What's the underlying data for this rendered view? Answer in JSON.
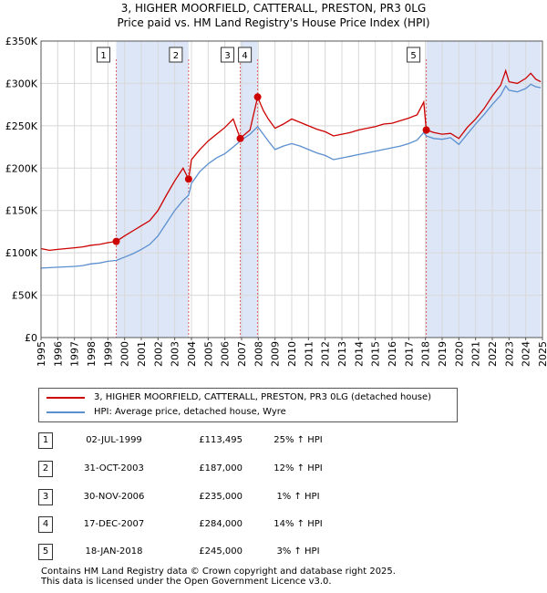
{
  "title_line1": "3, HIGHER MOORFIELD, CATTERALL, PRESTON, PR3 0LG",
  "title_line2": "Price paid vs. HM Land Registry's House Price Index (HPI)",
  "colors": {
    "price_line": "#cc0000",
    "hpi_line": "#5b8fd0",
    "shade": "#dde6f6",
    "marker": "#cc0000"
  },
  "chart_data": {
    "type": "line",
    "xlim": [
      1995,
      2025
    ],
    "ylim": [
      0,
      350000
    ],
    "y_ticks": [
      {
        "value": 0,
        "label": "£0"
      },
      {
        "value": 50000,
        "label": "£50K"
      },
      {
        "value": 100000,
        "label": "£100K"
      },
      {
        "value": 150000,
        "label": "£150K"
      },
      {
        "value": 200000,
        "label": "£200K"
      },
      {
        "value": 250000,
        "label": "£250K"
      },
      {
        "value": 300000,
        "label": "£300K"
      },
      {
        "value": 350000,
        "label": "£350K"
      }
    ],
    "x_ticks": [
      "1995",
      "1996",
      "1997",
      "1998",
      "1999",
      "2000",
      "2001",
      "2002",
      "2003",
      "2004",
      "2005",
      "2006",
      "2007",
      "2008",
      "2009",
      "2010",
      "2011",
      "2012",
      "2013",
      "2014",
      "2015",
      "2016",
      "2017",
      "2018",
      "2019",
      "2020",
      "2021",
      "2022",
      "2023",
      "2024",
      "2025"
    ],
    "shaded_ranges": [
      [
        1999.5,
        2003.83
      ],
      [
        2006.92,
        2007.96
      ],
      [
        2018.05,
        2024.9
      ]
    ],
    "series": [
      {
        "name": "3, HIGHER MOORFIELD, CATTERALL, PRESTON, PR3 0LG (detached house)",
        "points": [
          [
            1995.0,
            105000
          ],
          [
            1995.5,
            103000
          ],
          [
            1996.0,
            104000
          ],
          [
            1996.5,
            105000
          ],
          [
            1997.0,
            106000
          ],
          [
            1997.5,
            107000
          ],
          [
            1998.0,
            109000
          ],
          [
            1998.5,
            110000
          ],
          [
            1999.0,
            112000
          ],
          [
            1999.5,
            113495
          ],
          [
            2000.0,
            120000
          ],
          [
            2000.5,
            126000
          ],
          [
            2001.0,
            132000
          ],
          [
            2001.5,
            138000
          ],
          [
            2002.0,
            150000
          ],
          [
            2002.5,
            168000
          ],
          [
            2003.0,
            185000
          ],
          [
            2003.5,
            200000
          ],
          [
            2003.83,
            187000
          ],
          [
            2004.0,
            210000
          ],
          [
            2004.5,
            222000
          ],
          [
            2005.0,
            232000
          ],
          [
            2005.5,
            240000
          ],
          [
            2006.0,
            248000
          ],
          [
            2006.5,
            258000
          ],
          [
            2006.92,
            235000
          ],
          [
            2007.2,
            240000
          ],
          [
            2007.5,
            245000
          ],
          [
            2007.96,
            284000
          ],
          [
            2008.3,
            268000
          ],
          [
            2008.6,
            258000
          ],
          [
            2009.0,
            247000
          ],
          [
            2009.5,
            252000
          ],
          [
            2010.0,
            258000
          ],
          [
            2010.5,
            254000
          ],
          [
            2011.0,
            250000
          ],
          [
            2011.5,
            246000
          ],
          [
            2012.0,
            243000
          ],
          [
            2012.5,
            238000
          ],
          [
            2013.0,
            240000
          ],
          [
            2013.5,
            242000
          ],
          [
            2014.0,
            245000
          ],
          [
            2014.5,
            247000
          ],
          [
            2015.0,
            249000
          ],
          [
            2015.5,
            252000
          ],
          [
            2016.0,
            253000
          ],
          [
            2016.5,
            256000
          ],
          [
            2017.0,
            259000
          ],
          [
            2017.5,
            263000
          ],
          [
            2017.9,
            278000
          ],
          [
            2018.05,
            245000
          ],
          [
            2018.5,
            242000
          ],
          [
            2019.0,
            240000
          ],
          [
            2019.5,
            241000
          ],
          [
            2020.0,
            235000
          ],
          [
            2020.5,
            248000
          ],
          [
            2021.0,
            258000
          ],
          [
            2021.5,
            270000
          ],
          [
            2022.0,
            285000
          ],
          [
            2022.5,
            298000
          ],
          [
            2022.8,
            315000
          ],
          [
            2023.0,
            302000
          ],
          [
            2023.5,
            300000
          ],
          [
            2024.0,
            306000
          ],
          [
            2024.3,
            312000
          ],
          [
            2024.6,
            305000
          ],
          [
            2024.9,
            302000
          ]
        ]
      },
      {
        "name": "HPI: Average price, detached house, Wyre",
        "points": [
          [
            1995.0,
            82000
          ],
          [
            1995.5,
            82500
          ],
          [
            1996.0,
            83000
          ],
          [
            1996.5,
            83500
          ],
          [
            1997.0,
            84000
          ],
          [
            1997.5,
            85000
          ],
          [
            1998.0,
            87000
          ],
          [
            1998.5,
            88000
          ],
          [
            1999.0,
            90000
          ],
          [
            1999.5,
            91000
          ],
          [
            2000.0,
            95000
          ],
          [
            2000.5,
            99000
          ],
          [
            2001.0,
            104000
          ],
          [
            2001.5,
            110000
          ],
          [
            2002.0,
            120000
          ],
          [
            2002.5,
            135000
          ],
          [
            2003.0,
            150000
          ],
          [
            2003.5,
            162000
          ],
          [
            2003.83,
            168000
          ],
          [
            2004.0,
            182000
          ],
          [
            2004.5,
            196000
          ],
          [
            2005.0,
            205000
          ],
          [
            2005.5,
            212000
          ],
          [
            2006.0,
            217000
          ],
          [
            2006.5,
            225000
          ],
          [
            2006.92,
            232000
          ],
          [
            2007.2,
            236000
          ],
          [
            2007.5,
            240000
          ],
          [
            2007.96,
            249000
          ],
          [
            2008.3,
            240000
          ],
          [
            2008.6,
            232000
          ],
          [
            2009.0,
            222000
          ],
          [
            2009.5,
            226000
          ],
          [
            2010.0,
            229000
          ],
          [
            2010.5,
            226000
          ],
          [
            2011.0,
            222000
          ],
          [
            2011.5,
            218000
          ],
          [
            2012.0,
            215000
          ],
          [
            2012.5,
            210000
          ],
          [
            2013.0,
            212000
          ],
          [
            2013.5,
            214000
          ],
          [
            2014.0,
            216000
          ],
          [
            2014.5,
            218000
          ],
          [
            2015.0,
            220000
          ],
          [
            2015.5,
            222000
          ],
          [
            2016.0,
            224000
          ],
          [
            2016.5,
            226000
          ],
          [
            2017.0,
            229000
          ],
          [
            2017.5,
            233000
          ],
          [
            2017.9,
            242000
          ],
          [
            2018.05,
            238000
          ],
          [
            2018.5,
            235000
          ],
          [
            2019.0,
            234000
          ],
          [
            2019.5,
            236000
          ],
          [
            2020.0,
            228000
          ],
          [
            2020.5,
            240000
          ],
          [
            2021.0,
            252000
          ],
          [
            2021.5,
            263000
          ],
          [
            2022.0,
            275000
          ],
          [
            2022.5,
            286000
          ],
          [
            2022.8,
            297000
          ],
          [
            2023.0,
            292000
          ],
          [
            2023.5,
            290000
          ],
          [
            2024.0,
            294000
          ],
          [
            2024.3,
            299000
          ],
          [
            2024.6,
            296000
          ],
          [
            2024.9,
            295000
          ]
        ]
      }
    ],
    "sales": [
      {
        "label": "1",
        "x": 1999.5,
        "y": 113495
      },
      {
        "label": "2",
        "x": 2003.83,
        "y": 187000
      },
      {
        "label": "3",
        "x": 2006.92,
        "y": 235000
      },
      {
        "label": "4",
        "x": 2007.96,
        "y": 284000
      },
      {
        "label": "5",
        "x": 2018.05,
        "y": 245000
      }
    ]
  },
  "legend": {
    "price_label": "3, HIGHER MOORFIELD, CATTERALL, PRESTON, PR3 0LG (detached house)",
    "hpi_label": "HPI: Average price, detached house, Wyre"
  },
  "sales_table": [
    {
      "num": "1",
      "date": "02-JUL-1999",
      "price": "£113,495",
      "hpi": "25% ↑ HPI"
    },
    {
      "num": "2",
      "date": "31-OCT-2003",
      "price": "£187,000",
      "hpi": "12% ↑ HPI"
    },
    {
      "num": "3",
      "date": "30-NOV-2006",
      "price": "£235,000",
      "hpi": "1% ↑ HPI"
    },
    {
      "num": "4",
      "date": "17-DEC-2007",
      "price": "£284,000",
      "hpi": "14% ↑ HPI"
    },
    {
      "num": "5",
      "date": "18-JAN-2018",
      "price": "£245,000",
      "hpi": "3% ↑ HPI"
    }
  ],
  "footer_line1": "Contains HM Land Registry data © Crown copyright and database right 2025.",
  "footer_line2": "This data is licensed under the Open Government Licence v3.0."
}
